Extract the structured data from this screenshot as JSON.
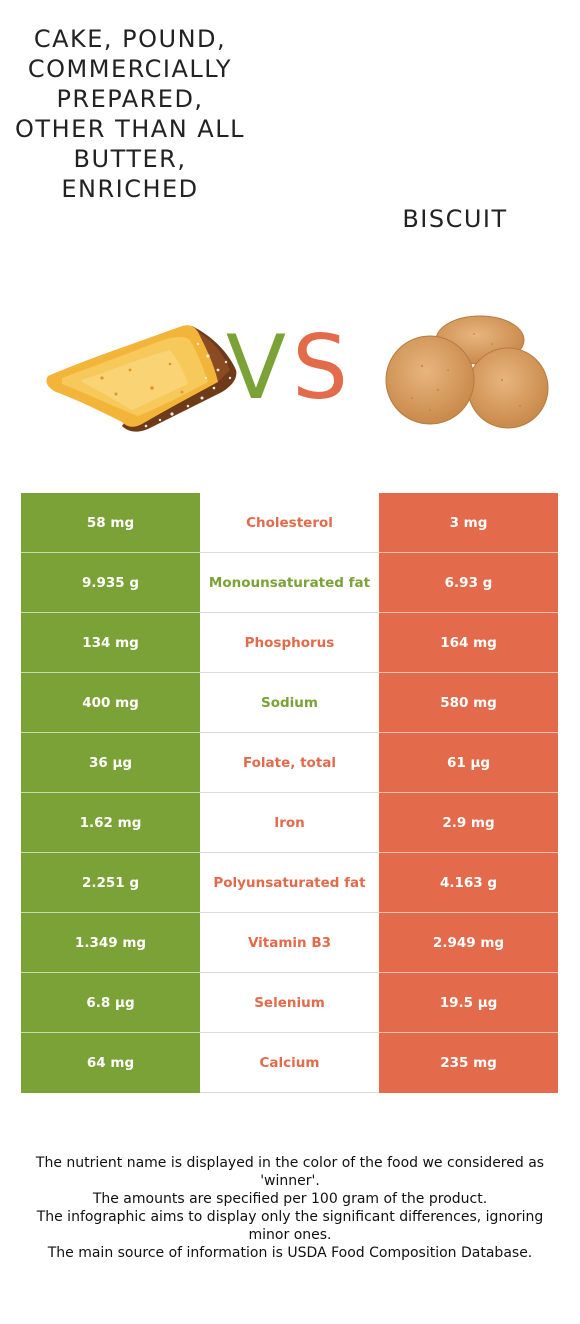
{
  "header": {
    "left_food": "CAKE, POUND, COMMERCIALLY PREPARED, OTHER THAN ALL BUTTER, ENRICHED",
    "right_food": "BISCUIT",
    "vs": {
      "v": "V",
      "s": "S"
    }
  },
  "colors": {
    "left_food": "#7ba236",
    "right_food": "#e36a4b"
  },
  "images": {
    "left": "pound-cake-slice-image",
    "right": "biscuits-image"
  },
  "comparison": [
    {
      "nutrient": "Cholesterol",
      "left": "58 mg",
      "right": "3 mg",
      "winner": "right"
    },
    {
      "nutrient": "Monounsaturated fat",
      "left": "9.935 g",
      "right": "6.93 g",
      "winner": "left"
    },
    {
      "nutrient": "Phosphorus",
      "left": "134 mg",
      "right": "164 mg",
      "winner": "right"
    },
    {
      "nutrient": "Sodium",
      "left": "400 mg",
      "right": "580 mg",
      "winner": "left"
    },
    {
      "nutrient": "Folate, total",
      "left": "36 µg",
      "right": "61 µg",
      "winner": "right"
    },
    {
      "nutrient": "Iron",
      "left": "1.62 mg",
      "right": "2.9 mg",
      "winner": "right"
    },
    {
      "nutrient": "Polyunsaturated fat",
      "left": "2.251 g",
      "right": "4.163 g",
      "winner": "right"
    },
    {
      "nutrient": "Vitamin B3",
      "left": "1.349 mg",
      "right": "2.949 mg",
      "winner": "right"
    },
    {
      "nutrient": "Selenium",
      "left": "6.8 µg",
      "right": "19.5 µg",
      "winner": "right"
    },
    {
      "nutrient": "Calcium",
      "left": "64 mg",
      "right": "235 mg",
      "winner": "right"
    }
  ],
  "footnotes": [
    "The nutrient name is displayed in the color of the food we considered as 'winner'.",
    "The amounts are specified per 100 gram of the product.",
    "The infographic aims to display only the significant differences, ignoring minor ones.",
    "The main source of information is USDA Food Composition Database."
  ]
}
